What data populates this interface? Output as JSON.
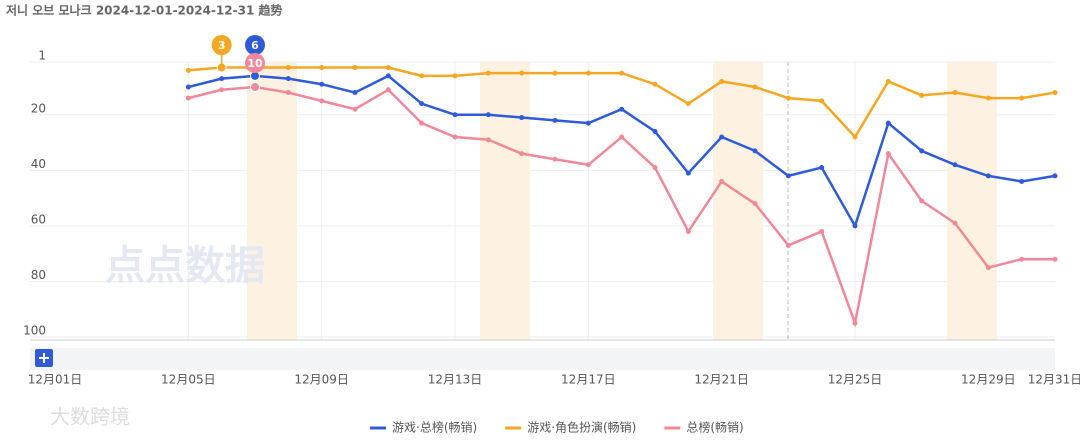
{
  "chart_data": {
    "type": "line",
    "title": "저니 오브 모나크 2024-12-01-2024-12-31 趋势",
    "categories": [
      "12月01日",
      null,
      null,
      null,
      "12月05日",
      null,
      null,
      null,
      "12月09日",
      null,
      null,
      null,
      "12月13日",
      null,
      null,
      null,
      "12月17日",
      null,
      null,
      null,
      "12月21日",
      null,
      null,
      null,
      "12月25日",
      null,
      null,
      null,
      "12月29日",
      null,
      "12月31日"
    ],
    "ylim": [
      1,
      100
    ],
    "yticks": [
      1,
      20,
      40,
      60,
      80,
      100
    ],
    "y_reversed": true,
    "grid": true,
    "series": [
      {
        "name": "游戏·总榜(畅销)",
        "color": "#2f5bd8",
        "values": [
          null,
          null,
          null,
          null,
          10,
          7,
          6,
          7,
          9,
          12,
          6,
          16,
          20,
          20,
          21,
          22,
          23,
          18,
          26,
          41,
          28,
          33,
          42,
          39,
          60,
          23,
          33,
          38,
          42,
          44,
          42
        ]
      },
      {
        "name": "游戏·角色扮演(畅销)",
        "color": "#f5a623",
        "values": [
          null,
          null,
          null,
          null,
          4,
          3,
          3,
          3,
          3,
          3,
          3,
          6,
          6,
          5,
          5,
          5,
          5,
          5,
          9,
          16,
          8,
          10,
          14,
          15,
          28,
          8,
          13,
          12,
          14,
          14,
          12
        ]
      },
      {
        "name": "总榜(畅销)",
        "color": "#f0889a",
        "values": [
          null,
          null,
          null,
          null,
          14,
          11,
          10,
          12,
          15,
          18,
          11,
          23,
          28,
          29,
          34,
          36,
          38,
          28,
          39,
          62,
          44,
          52,
          67,
          62,
          95,
          34,
          51,
          59,
          75,
          72,
          72
        ]
      }
    ],
    "watermarks": [
      "点点数据",
      "大数跨境"
    ]
  }
}
